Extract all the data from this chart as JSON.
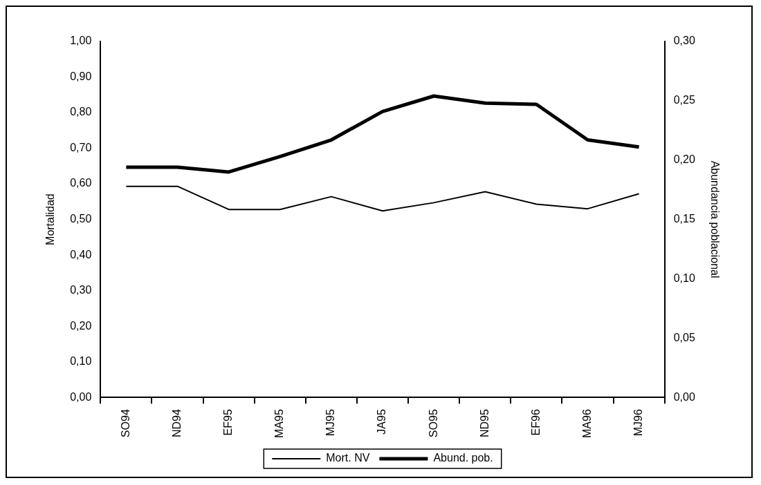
{
  "chart_data": {
    "type": "line",
    "xlabel": null,
    "ylabel": "Mortalidad",
    "y2label": "Abundancia poblacional",
    "categories": [
      "SO94",
      "ND94",
      "EF95",
      "MA95",
      "MJ95",
      "JA95",
      "SO95",
      "ND95",
      "EF96",
      "MA96",
      "MJ96"
    ],
    "series": [
      {
        "name": "Mort. NV",
        "color": "#000000",
        "values": [
          0.593,
          0.593,
          0.528,
          0.528,
          0.564,
          0.524,
          0.547,
          0.578,
          0.543,
          0.53,
          0.572
        ]
      },
      {
        "name": "Abund. pob.",
        "color": "#000000",
        "axis": "y2",
        "values": [
          0.194,
          0.194,
          0.19,
          0.203,
          0.217,
          0.241,
          0.254,
          0.248,
          0.247,
          0.217,
          0.211
        ]
      }
    ],
    "ylim": [
      0,
      1
    ],
    "yticks": [
      {
        "value": 0,
        "label": "0,00"
      },
      {
        "value": 0.1,
        "label": "0,10"
      },
      {
        "value": 0.2,
        "label": "0,20"
      },
      {
        "value": 0.3,
        "label": "0,30"
      },
      {
        "value": 0.4,
        "label": "0,40"
      },
      {
        "value": 0.5,
        "label": "0,50"
      },
      {
        "value": 0.6,
        "label": "0,60"
      },
      {
        "value": 0.7,
        "label": "0,70"
      },
      {
        "value": 0.8,
        "label": "0,80"
      },
      {
        "value": 0.9,
        "label": "0,90"
      },
      {
        "value": 1,
        "label": "1,00"
      }
    ],
    "y2lim": [
      0,
      0.3
    ],
    "y2ticks": [
      {
        "value": 0,
        "label": "0,00"
      },
      {
        "value": 0.05,
        "label": "0,05"
      },
      {
        "value": 0.1,
        "label": "0,10"
      },
      {
        "value": 0.15,
        "label": "0,15"
      },
      {
        "value": 0.2,
        "label": "0,20"
      },
      {
        "value": 0.25,
        "label": "0,25"
      },
      {
        "value": 0.3,
        "label": "0,30"
      }
    ],
    "grid": false,
    "legend": "bottom",
    "marker": "none",
    "line_style": "solid"
  }
}
